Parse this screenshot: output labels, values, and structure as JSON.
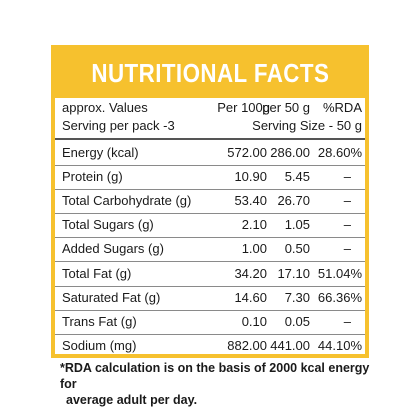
{
  "label": {
    "title": "NUTRITIONAL FACTS",
    "header_row": {
      "name": "approx. Values",
      "per_100g": "Per 100g",
      "per_50g": "per 50 g",
      "rda": "%RDA"
    },
    "serving_row": {
      "per_pack": "Serving per pack -3",
      "size": "Serving Size - 50 g"
    },
    "rows": [
      {
        "name": "Energy (kcal)",
        "per_100g": "572.00",
        "per_50g": "286.00",
        "rda": "28.60%"
      },
      {
        "name": "Protein (g)",
        "per_100g": "10.90",
        "per_50g": "5.45",
        "rda": "–"
      },
      {
        "name": "Total Carbohydrate (g)",
        "per_100g": "53.40",
        "per_50g": "26.70",
        "rda": "–"
      },
      {
        "name": "Total Sugars (g)",
        "per_100g": "2.10",
        "per_50g": "1.05",
        "rda": "–"
      },
      {
        "name": "Added Sugars (g)",
        "per_100g": "1.00",
        "per_50g": "0.50",
        "rda": "–"
      },
      {
        "name": "Total Fat (g)",
        "per_100g": "34.20",
        "per_50g": "17.10",
        "rda": "51.04%"
      },
      {
        "name": "Saturated Fat (g)",
        "per_100g": "14.60",
        "per_50g": "7.30",
        "rda": "66.36%"
      },
      {
        "name": "Trans Fat (g)",
        "per_100g": "0.10",
        "per_50g": "0.05",
        "rda": "–"
      },
      {
        "name": "Sodium (mg)",
        "per_100g": "882.00",
        "per_50g": "441.00",
        "rda": "44.10%"
      }
    ],
    "footnote_line1": "*RDA calculation is on the basis of 2000 kcal energy for",
    "footnote_line2": "average adult per day."
  },
  "colors": {
    "accent": "#f6c12e",
    "text": "#1a1a1a",
    "background": "#ffffff"
  }
}
